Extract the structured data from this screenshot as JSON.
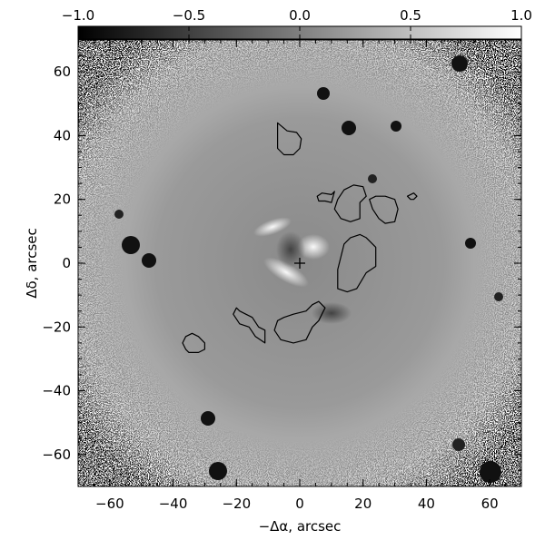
{
  "chart_data": {
    "type": "heatmap",
    "colorbar": {
      "ticks": [
        -1.0,
        -0.5,
        0.0,
        0.5,
        1.0
      ],
      "tick_labels": [
        "−1.0",
        "−0.5",
        "0.0",
        "0.5",
        "1.0"
      ],
      "range": [
        -1.0,
        1.0
      ],
      "colormap": "grayscale (black to white)",
      "placement": "top"
    },
    "xlabel": "−Δα, arcsec",
    "ylabel": "Δδ, arcsec",
    "xlim": [
      -70,
      70
    ],
    "ylim": [
      -70,
      70
    ],
    "xticks": [
      -60,
      -40,
      -20,
      0,
      20,
      40,
      60
    ],
    "xtick_labels": [
      "−60",
      "−40",
      "−20",
      "0",
      "20",
      "40",
      "60"
    ],
    "yticks": [
      -60,
      -40,
      -20,
      0,
      20,
      40,
      60
    ],
    "ytick_labels": [
      "−60",
      "−40",
      "−20",
      "0",
      "20",
      "40",
      "60"
    ],
    "center_marker": {
      "x": 0,
      "y": 0,
      "symbol": "+"
    },
    "contours": [
      [
        [
          -7,
          44
        ],
        [
          -4,
          41.5
        ],
        [
          -1,
          41
        ],
        [
          0.5,
          39
        ],
        [
          0,
          36
        ],
        [
          -2,
          34
        ],
        [
          -5,
          34
        ],
        [
          -7,
          36
        ],
        [
          -7,
          40
        ]
      ],
      [
        [
          5.5,
          21
        ],
        [
          7,
          22
        ],
        [
          10,
          21.5
        ],
        [
          11,
          22.5
        ],
        [
          10,
          19
        ],
        [
          8,
          19.5
        ],
        [
          6,
          19.5
        ]
      ],
      [
        [
          12,
          20
        ],
        [
          14,
          23
        ],
        [
          17,
          24.5
        ],
        [
          20,
          24
        ],
        [
          21,
          21
        ],
        [
          19,
          19
        ],
        [
          19,
          14
        ],
        [
          16,
          13
        ],
        [
          13,
          14
        ],
        [
          11,
          17
        ]
      ],
      [
        [
          22,
          20
        ],
        [
          24,
          21
        ],
        [
          27,
          21
        ],
        [
          30,
          20
        ],
        [
          31,
          17
        ],
        [
          30,
          13
        ],
        [
          27,
          12.5
        ],
        [
          25,
          14
        ],
        [
          23,
          17
        ]
      ],
      [
        [
          34,
          21
        ],
        [
          36,
          22
        ],
        [
          37,
          21
        ],
        [
          36,
          20
        ],
        [
          35,
          20
        ]
      ],
      [
        [
          12,
          -8
        ],
        [
          15,
          -9
        ],
        [
          18,
          -8
        ],
        [
          21,
          -3
        ],
        [
          24,
          -1
        ],
        [
          24,
          5
        ],
        [
          22,
          7
        ],
        [
          21,
          8
        ],
        [
          19,
          9
        ],
        [
          16,
          8
        ],
        [
          14,
          6
        ],
        [
          13,
          2
        ],
        [
          12,
          -2
        ]
      ],
      [
        [
          -20,
          -14
        ],
        [
          -21,
          -16
        ],
        [
          -19,
          -19
        ],
        [
          -16,
          -20
        ],
        [
          -14,
          -23
        ],
        [
          -11,
          -25
        ],
        [
          -11,
          -21
        ],
        [
          -13,
          -20
        ],
        [
          -15,
          -17
        ],
        [
          -17,
          -16
        ],
        [
          -19,
          -15
        ]
      ],
      [
        [
          -7,
          -18
        ],
        [
          -8,
          -21
        ],
        [
          -6,
          -24
        ],
        [
          -2,
          -25
        ],
        [
          2,
          -24
        ],
        [
          4,
          -20
        ],
        [
          6,
          -18
        ],
        [
          7,
          -16
        ],
        [
          8,
          -14
        ],
        [
          6,
          -12
        ],
        [
          4,
          -13
        ],
        [
          2,
          -15
        ],
        [
          -2,
          -16
        ],
        [
          -5,
          -17
        ]
      ],
      [
        [
          -36,
          -23
        ],
        [
          -37,
          -25
        ],
        [
          -36,
          -27
        ],
        [
          -35,
          -28
        ],
        [
          -32,
          -28
        ],
        [
          -30,
          -27
        ],
        [
          -30,
          -25
        ],
        [
          -32,
          -23
        ],
        [
          -34,
          -22
        ]
      ]
    ]
  }
}
